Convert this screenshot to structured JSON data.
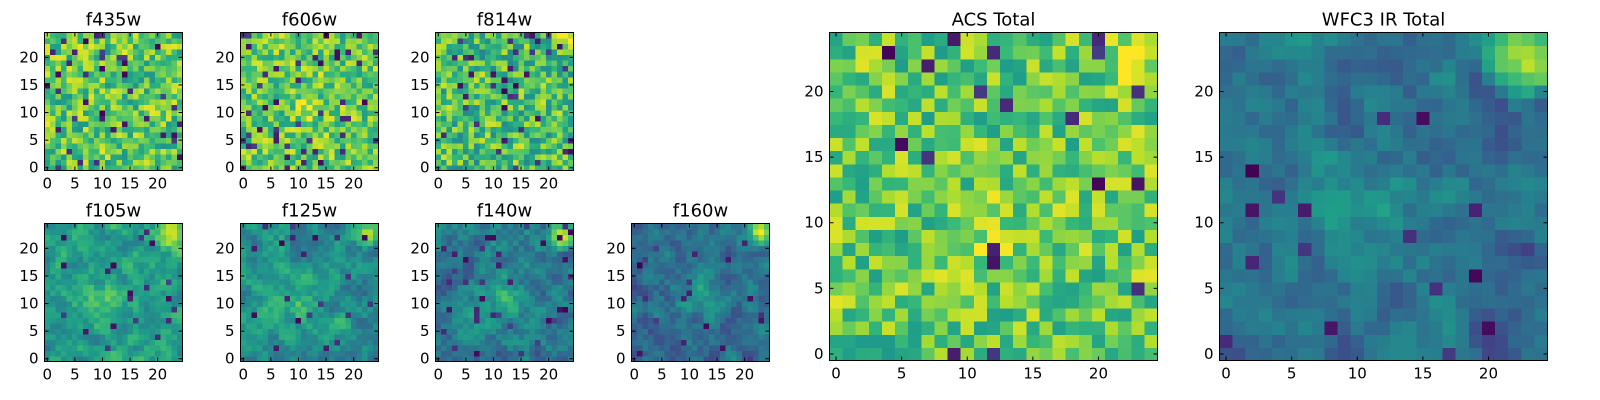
{
  "figure": {
    "colormap": "viridis",
    "colors": {
      "low": "#440154",
      "mid": "#21908d",
      "high": "#fde725",
      "frame": "#000000"
    }
  },
  "chart_data": [
    {
      "type": "heatmap",
      "title": "f435w",
      "grid": [
        25,
        25
      ],
      "xticks": [
        0,
        5,
        10,
        15,
        20
      ],
      "yticks": [
        0,
        5,
        10,
        15,
        20
      ],
      "texture": {
        "base": 0.74,
        "amp": 0.24,
        "seed": 11,
        "smooth": 0.1,
        "dark_rate": 0.07,
        "glow": []
      }
    },
    {
      "type": "heatmap",
      "title": "f606w",
      "grid": [
        25,
        25
      ],
      "xticks": [
        0,
        5,
        10,
        15,
        20
      ],
      "yticks": [
        0,
        5,
        10,
        15,
        20
      ],
      "texture": {
        "base": 0.76,
        "amp": 0.22,
        "seed": 23,
        "smooth": 0.1,
        "dark_rate": 0.06,
        "glow": [
          {
            "cx": 0.48,
            "cy": 0.45,
            "r": 0.12,
            "a": 0.25
          }
        ]
      }
    },
    {
      "type": "heatmap",
      "title": "f814w",
      "grid": [
        25,
        25
      ],
      "xticks": [
        0,
        5,
        10,
        15,
        20
      ],
      "yticks": [
        0,
        5,
        10,
        15,
        20
      ],
      "texture": {
        "base": 0.7,
        "amp": 0.25,
        "seed": 37,
        "smooth": 0.1,
        "dark_rate": 0.07,
        "glow": [
          {
            "cx": 0.95,
            "cy": 0.95,
            "r": 0.1,
            "a": 0.35
          }
        ]
      }
    },
    {
      "type": "heatmap",
      "title": "f105w",
      "grid": [
        25,
        25
      ],
      "xticks": [
        0,
        5,
        10,
        15,
        20
      ],
      "yticks": [
        0,
        5,
        10,
        15,
        20
      ],
      "texture": {
        "base": 0.55,
        "amp": 0.2,
        "seed": 41,
        "smooth": 0.6,
        "dark_rate": 0.03,
        "glow": [
          {
            "cx": 0.45,
            "cy": 0.45,
            "r": 0.3,
            "a": 0.15
          },
          {
            "cx": 0.94,
            "cy": 0.94,
            "r": 0.14,
            "a": 0.45
          }
        ]
      }
    },
    {
      "type": "heatmap",
      "title": "f125w",
      "grid": [
        25,
        25
      ],
      "xticks": [
        0,
        5,
        10,
        15,
        20
      ],
      "yticks": [
        0,
        5,
        10,
        15,
        20
      ],
      "texture": {
        "base": 0.5,
        "amp": 0.2,
        "seed": 53,
        "smooth": 0.6,
        "dark_rate": 0.04,
        "glow": [
          {
            "cx": 0.4,
            "cy": 0.4,
            "r": 0.3,
            "a": 0.15
          },
          {
            "cx": 0.95,
            "cy": 0.95,
            "r": 0.14,
            "a": 0.5
          }
        ]
      }
    },
    {
      "type": "heatmap",
      "title": "f140w",
      "grid": [
        25,
        25
      ],
      "xticks": [
        0,
        5,
        10,
        15,
        20
      ],
      "yticks": [
        0,
        5,
        10,
        15,
        20
      ],
      "texture": {
        "base": 0.42,
        "amp": 0.2,
        "seed": 67,
        "smooth": 0.6,
        "dark_rate": 0.04,
        "glow": [
          {
            "cx": 0.45,
            "cy": 0.45,
            "r": 0.3,
            "a": 0.2
          },
          {
            "cx": 0.95,
            "cy": 0.95,
            "r": 0.15,
            "a": 0.55
          }
        ]
      }
    },
    {
      "type": "heatmap",
      "title": "f160w",
      "grid": [
        25,
        25
      ],
      "xticks": [
        0,
        5,
        10,
        15,
        20
      ],
      "yticks": [
        0,
        5,
        10,
        15,
        20
      ],
      "texture": {
        "base": 0.36,
        "amp": 0.18,
        "seed": 79,
        "smooth": 0.6,
        "dark_rate": 0.04,
        "glow": [
          {
            "cx": 0.5,
            "cy": 0.5,
            "r": 0.3,
            "a": 0.2
          },
          {
            "cx": 0.95,
            "cy": 0.95,
            "r": 0.15,
            "a": 0.6
          }
        ]
      }
    },
    {
      "type": "heatmap",
      "title": "ACS Total",
      "grid": [
        25,
        25
      ],
      "xticks": [
        0,
        5,
        10,
        15,
        20
      ],
      "yticks": [
        0,
        5,
        10,
        15,
        20
      ],
      "texture": {
        "base": 0.75,
        "amp": 0.22,
        "seed": 97,
        "smooth": 0.1,
        "dark_rate": 0.035,
        "glow": [
          {
            "cx": 0.48,
            "cy": 0.42,
            "r": 0.12,
            "a": 0.2
          },
          {
            "cx": 0.95,
            "cy": 0.95,
            "r": 0.12,
            "a": 0.3
          }
        ]
      }
    },
    {
      "type": "heatmap",
      "title": "WFC3 IR Total",
      "grid": [
        25,
        25
      ],
      "xticks": [
        0,
        5,
        10,
        15,
        20
      ],
      "yticks": [
        0,
        5,
        10,
        15,
        20
      ],
      "texture": {
        "base": 0.37,
        "amp": 0.18,
        "seed": 131,
        "smooth": 0.65,
        "dark_rate": 0.035,
        "glow": [
          {
            "cx": 0.48,
            "cy": 0.45,
            "r": 0.3,
            "a": 0.15
          },
          {
            "cx": 0.94,
            "cy": 0.94,
            "r": 0.16,
            "a": 0.65
          }
        ]
      }
    }
  ]
}
